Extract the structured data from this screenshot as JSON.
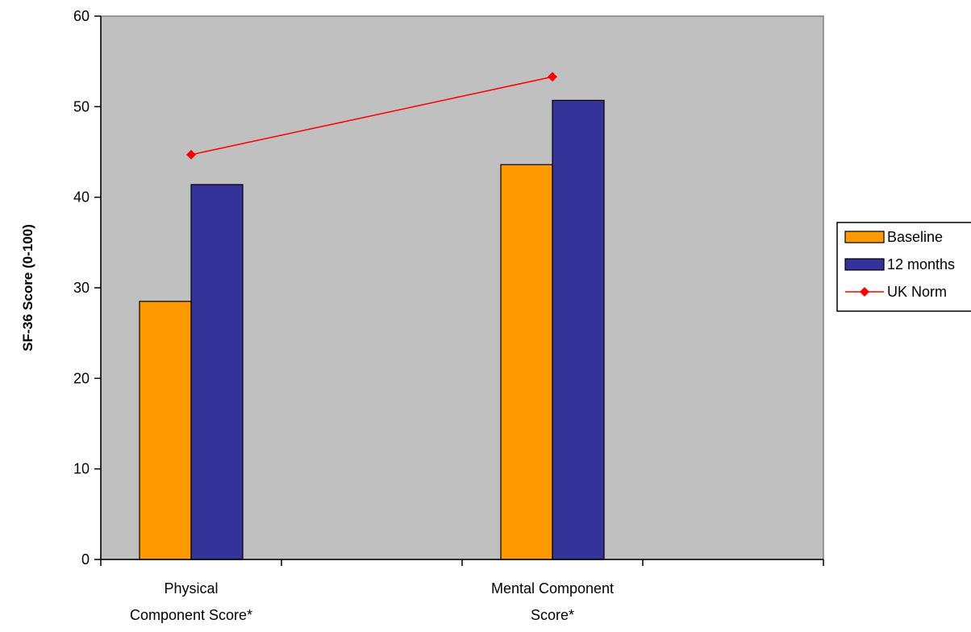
{
  "chart_data": {
    "type": "bar",
    "title": "",
    "xlabel": "",
    "ylabel": "SF-36 Score (0-100)",
    "ylim": [
      0,
      60
    ],
    "yticks": [
      0,
      10,
      20,
      30,
      40,
      50,
      60
    ],
    "grid": false,
    "legend_position": "right",
    "categories": [
      [
        "Physical",
        "Component Score*"
      ],
      [
        "Mental Component",
        "Score*"
      ]
    ],
    "slots": 4,
    "series": [
      {
        "name": "Baseline",
        "kind": "bar",
        "values": [
          28.5,
          43.6
        ],
        "color": "#FF9900"
      },
      {
        "name": "12 months",
        "kind": "bar",
        "values": [
          41.4,
          50.7
        ],
        "color": "#333399"
      },
      {
        "name": "UK Norm",
        "kind": "line",
        "values": [
          44.7,
          53.3
        ],
        "color": "#FF0000"
      }
    ],
    "plot_background": "#C0C0C0"
  }
}
